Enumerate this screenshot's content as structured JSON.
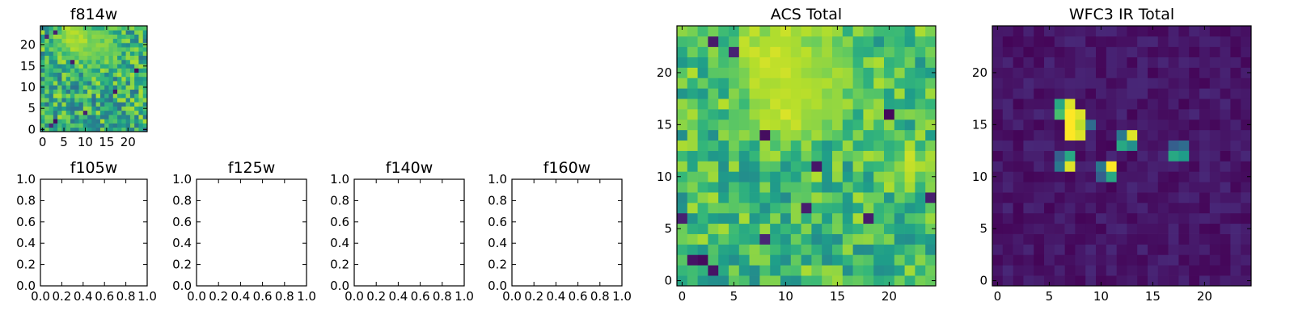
{
  "chart_data": [
    {
      "type": "heatmap",
      "title": "f814w",
      "size": 25,
      "xlim": [
        -0.5,
        24.5
      ],
      "ylim": [
        -0.5,
        24.5
      ],
      "xticks": [
        "0",
        "5",
        "10",
        "15",
        "20"
      ],
      "yticks": [
        "0",
        "5",
        "10",
        "15",
        "20"
      ],
      "colormap": "viridis",
      "vmin": 0,
      "vmax": 1,
      "seed": 17,
      "mean": 0.62,
      "spread": 0.26,
      "bright": [
        [
          8,
          21,
          0.9,
          3.5
        ],
        [
          14,
          19,
          0.8,
          3
        ]
      ],
      "dark": [
        [
          2,
          1
        ],
        [
          3,
          2
        ],
        [
          1,
          22
        ],
        [
          3,
          23
        ],
        [
          10,
          4
        ],
        [
          22,
          14
        ],
        [
          7,
          16
        ],
        [
          17,
          9
        ]
      ]
    },
    {
      "type": "heatmap",
      "title": "ACS Total",
      "size": 25,
      "xlim": [
        -0.5,
        24.5
      ],
      "ylim": [
        -0.5,
        24.5
      ],
      "xticks": [
        "0",
        "5",
        "10",
        "15",
        "20"
      ],
      "yticks": [
        "0",
        "5",
        "10",
        "15",
        "20"
      ],
      "colormap": "viridis",
      "vmin": 0,
      "vmax": 1,
      "seed": 91,
      "mean": 0.68,
      "spread": 0.2,
      "bright": [
        [
          9,
          21,
          0.95,
          3
        ],
        [
          11,
          18,
          0.9,
          2.5
        ],
        [
          14,
          20,
          0.85,
          2.5
        ],
        [
          22,
          11,
          0.9,
          1.5
        ],
        [
          10,
          16,
          0.9,
          2
        ]
      ],
      "dark": [
        [
          3,
          23
        ],
        [
          8,
          14
        ],
        [
          13,
          11
        ],
        [
          24,
          8
        ],
        [
          0,
          6
        ],
        [
          1,
          2
        ],
        [
          2,
          2
        ],
        [
          3,
          1
        ],
        [
          12,
          7
        ],
        [
          18,
          6
        ],
        [
          8,
          4
        ],
        [
          5,
          22
        ],
        [
          20,
          16
        ]
      ]
    },
    {
      "type": "heatmap",
      "title": "WFC3 IR Total",
      "size": 25,
      "xlim": [
        -0.5,
        24.5
      ],
      "ylim": [
        -0.5,
        24.5
      ],
      "xticks": [
        "0",
        "5",
        "10",
        "15",
        "20"
      ],
      "yticks": [
        "0",
        "5",
        "10",
        "15",
        "20"
      ],
      "colormap": "viridis",
      "vmin": 0,
      "vmax": 1,
      "seed": 5,
      "mean": 0.06,
      "spread": 0.05,
      "pixels": [
        [
          6,
          17,
          0.6
        ],
        [
          7,
          17,
          0.95
        ],
        [
          8,
          16,
          0.95
        ],
        [
          7,
          16,
          1.0
        ],
        [
          6,
          16,
          0.7
        ],
        [
          7,
          15,
          1.0
        ],
        [
          8,
          15,
          0.9
        ],
        [
          7,
          14,
          1.0
        ],
        [
          8,
          14,
          0.95
        ],
        [
          9,
          15,
          0.35
        ],
        [
          6,
          12,
          0.3
        ],
        [
          7,
          12,
          0.6
        ],
        [
          7,
          11,
          0.95
        ],
        [
          6,
          11,
          0.4
        ],
        [
          10,
          11,
          0.4
        ],
        [
          11,
          11,
          1.0
        ],
        [
          11,
          10,
          0.6
        ],
        [
          10,
          10,
          0.3
        ],
        [
          12,
          14,
          0.4
        ],
        [
          13,
          14,
          0.95
        ],
        [
          12,
          13,
          0.6
        ],
        [
          13,
          13,
          0.5
        ],
        [
          17,
          13,
          0.3
        ],
        [
          18,
          13,
          0.35
        ],
        [
          17,
          12,
          0.6
        ],
        [
          18,
          12,
          0.55
        ]
      ]
    },
    {
      "type": "empty",
      "title": "f105w",
      "xlim": [
        0.0,
        1.0
      ],
      "ylim": [
        0.0,
        1.0
      ],
      "xticks": [
        "0.0",
        "0.2",
        "0.4",
        "0.6",
        "0.8",
        "1.0"
      ],
      "yticks": [
        "0.0",
        "0.2",
        "0.4",
        "0.6",
        "0.8",
        "1.0"
      ]
    },
    {
      "type": "empty",
      "title": "f125w",
      "xlim": [
        0.0,
        1.0
      ],
      "ylim": [
        0.0,
        1.0
      ],
      "xticks": [
        "0.0",
        "0.2",
        "0.4",
        "0.6",
        "0.8",
        "1.0"
      ],
      "yticks": [
        "0.0",
        "0.2",
        "0.4",
        "0.6",
        "0.8",
        "1.0"
      ]
    },
    {
      "type": "empty",
      "title": "f140w",
      "xlim": [
        0.0,
        1.0
      ],
      "ylim": [
        0.0,
        1.0
      ],
      "xticks": [
        "0.0",
        "0.2",
        "0.4",
        "0.6",
        "0.8",
        "1.0"
      ],
      "yticks": [
        "0.0",
        "0.2",
        "0.4",
        "0.6",
        "0.8",
        "1.0"
      ]
    },
    {
      "type": "empty",
      "title": "f160w",
      "xlim": [
        0.0,
        1.0
      ],
      "ylim": [
        0.0,
        1.0
      ],
      "xticks": [
        "0.0",
        "0.2",
        "0.4",
        "0.6",
        "0.8",
        "1.0"
      ],
      "yticks": [
        "0.0",
        "0.2",
        "0.4",
        "0.6",
        "0.8",
        "1.0"
      ]
    }
  ]
}
